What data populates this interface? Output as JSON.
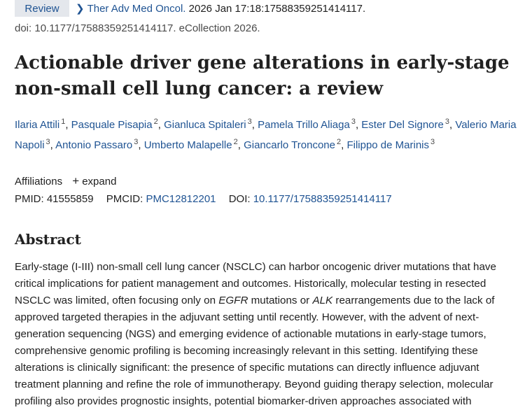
{
  "header": {
    "badge": "Review",
    "journal": "Ther Adv Med Oncol.",
    "citation": " 2026 Jan 17:18:17588359251414117.",
    "doi_line": "doi: 10.1177/17588359251414117. eCollection 2026."
  },
  "article": {
    "title": "Actionable driver gene alterations in early-stage non-small cell lung cancer: a review"
  },
  "authors": [
    {
      "name": "Ilaria Attili",
      "aff": "1"
    },
    {
      "name": "Pasquale Pisapia",
      "aff": "2"
    },
    {
      "name": "Gianluca Spitaleri",
      "aff": "3"
    },
    {
      "name": "Pamela Trillo Aliaga",
      "aff": "3"
    },
    {
      "name": "Ester Del Signore",
      "aff": "3"
    },
    {
      "name": "Valerio Maria Napoli",
      "aff": "3"
    },
    {
      "name": "Antonio Passaro",
      "aff": "3"
    },
    {
      "name": "Umberto Malapelle",
      "aff": "2"
    },
    {
      "name": "Giancarlo Troncone",
      "aff": "2"
    },
    {
      "name": "Filippo de Marinis",
      "aff": "3"
    }
  ],
  "affiliations": {
    "label": "Affiliations",
    "expand_label": "expand"
  },
  "identifiers": {
    "pmid_label": "PMID:",
    "pmid": "41555859",
    "pmcid_label": "PMCID:",
    "pmcid": "PMC12812201",
    "doi_label": "DOI:",
    "doi": "10.1177/17588359251414117"
  },
  "abstract": {
    "heading": "Abstract",
    "p1": "Early-stage (I-III) non-small cell lung cancer (NSCLC) can harbor oncogenic driver mutations that have critical implications for patient management and outcomes. Historically, molecular testing in resected NSCLC was limited, often focusing only on ",
    "gene1": "EGFR",
    "p2": " mutations or ",
    "gene2": "ALK",
    "p3": " rearrangements due to the lack of approved targeted therapies in the adjuvant setting until recently. However, with the advent of next-generation sequencing (NGS) and emerging evidence of actionable mutations in early-stage tumors, comprehensive genomic profiling is becoming increasingly relevant in this setting. Identifying these alterations is clinically significant: the presence of specific mutations can directly influence adjuvant treatment planning and refine the role of immunotherapy. Beyond guiding therapy selection, molecular profiling also provides prognostic insights, potential biomarker-driven approaches associated with"
  }
}
